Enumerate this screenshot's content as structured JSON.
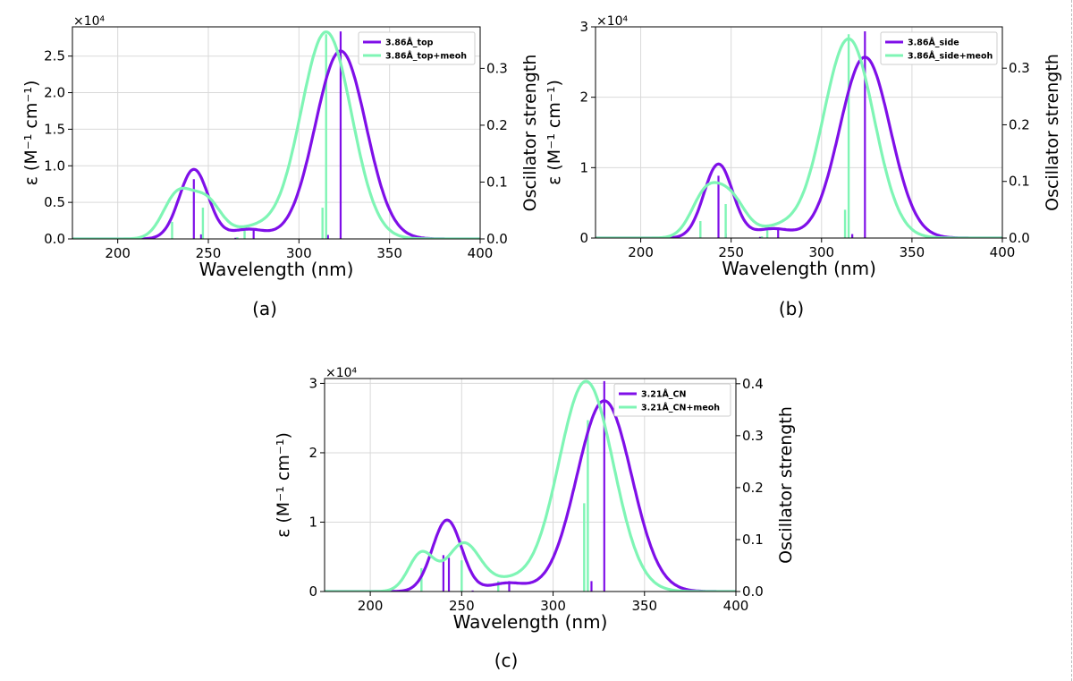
{
  "chart_data": [
    {
      "type": "line",
      "panel_label": "(a)",
      "xlabel": "Wavelength (nm)",
      "ylabel": "ε (M⁻¹ cm⁻¹)",
      "y2label": "Oscillator strength",
      "exponent_label": "×10⁴",
      "xlim": [
        175,
        400
      ],
      "ylim": [
        0,
        2.9
      ],
      "y2lim": [
        0,
        0.373
      ],
      "xticks": [
        200,
        250,
        300,
        350,
        400
      ],
      "yticks": [
        0.0,
        0.5,
        1.0,
        1.5,
        2.0,
        2.5
      ],
      "ytick_labels": [
        "0.0",
        "0.5",
        "1.0",
        "1.5",
        "2.0",
        "2.5"
      ],
      "y2ticks": [
        0.0,
        0.1,
        0.2,
        0.3
      ],
      "y2tick_labels": [
        "0.0",
        "0.1",
        "0.2",
        "0.3"
      ],
      "grid": true,
      "legend_position": "top-right",
      "series": [
        {
          "name": "3.86Å_top",
          "color": "#7f0fe8",
          "bands": [
            {
              "center": 242,
              "amp": 0.95,
              "sigma": 8
            },
            {
              "center": 272,
              "amp": 0.13,
              "sigma": 10
            },
            {
              "center": 323,
              "amp": 2.57,
              "sigma": 14
            }
          ],
          "sticks": [
            [
              242,
              0.105
            ],
            [
              246,
              0.008
            ],
            [
              265,
              0.002
            ],
            [
              275,
              0.016
            ],
            [
              316,
              0.007
            ],
            [
              323,
              0.365
            ]
          ]
        },
        {
          "name": "3.86Å_top+meoh",
          "color": "#7ff5b5",
          "bands": [
            {
              "center": 233,
              "amp": 0.6,
              "sigma": 8
            },
            {
              "center": 249,
              "amp": 0.5,
              "sigma": 8
            },
            {
              "center": 275,
              "amp": 0.15,
              "sigma": 12
            },
            {
              "center": 315,
              "amp": 2.83,
              "sigma": 14
            }
          ],
          "sticks": [
            [
              230,
              0.03
            ],
            [
              247,
              0.055
            ],
            [
              266,
              0.003
            ],
            [
              270,
              0.02
            ],
            [
              313,
              0.055
            ],
            [
              315,
              0.36
            ]
          ]
        }
      ]
    },
    {
      "type": "line",
      "panel_label": "(b)",
      "xlabel": "Wavelength (nm)",
      "ylabel": "ε (M⁻¹ cm⁻¹)",
      "y2label": "Oscillator strength",
      "exponent_label": "×10⁴",
      "xlim": [
        175,
        400
      ],
      "ylim": [
        0,
        3.0
      ],
      "y2lim": [
        0,
        0.373
      ],
      "xticks": [
        200,
        250,
        300,
        350,
        400
      ],
      "yticks": [
        0,
        1,
        2,
        3
      ],
      "ytick_labels": [
        "0",
        "1",
        "2",
        "3"
      ],
      "y2ticks": [
        0.0,
        0.1,
        0.2,
        0.3
      ],
      "y2tick_labels": [
        "0.0",
        "0.1",
        "0.2",
        "0.3"
      ],
      "grid": true,
      "legend_position": "top-right",
      "series": [
        {
          "name": "3.86Å_side",
          "color": "#7f0fe8",
          "bands": [
            {
              "center": 243,
              "amp": 1.05,
              "sigma": 8
            },
            {
              "center": 273,
              "amp": 0.13,
              "sigma": 10
            },
            {
              "center": 324,
              "amp": 2.57,
              "sigma": 14
            }
          ],
          "sticks": [
            [
              243,
              0.11
            ],
            [
              247,
              0.008
            ],
            [
              266,
              0.002
            ],
            [
              276,
              0.015
            ],
            [
              317,
              0.007
            ],
            [
              324,
              0.365
            ]
          ]
        },
        {
          "name": "3.86Å_side+meoh",
          "color": "#7ff5b5",
          "bands": [
            {
              "center": 236,
              "amp": 0.62,
              "sigma": 8
            },
            {
              "center": 250,
              "amp": 0.52,
              "sigma": 8
            },
            {
              "center": 276,
              "amp": 0.15,
              "sigma": 12
            },
            {
              "center": 315,
              "amp": 2.83,
              "sigma": 14
            }
          ],
          "sticks": [
            [
              233,
              0.03
            ],
            [
              247,
              0.06
            ],
            [
              267,
              0.003
            ],
            [
              270,
              0.02
            ],
            [
              313,
              0.05
            ],
            [
              315,
              0.36
            ]
          ]
        }
      ]
    },
    {
      "type": "line",
      "panel_label": "(c)",
      "xlabel": "Wavelength (nm)",
      "ylabel": "ε (M⁻¹ cm⁻¹)",
      "y2label": "Oscillator strength",
      "exponent_label": "×10⁴",
      "xlim": [
        175,
        400
      ],
      "ylim": [
        0,
        3.07
      ],
      "y2lim": [
        0,
        0.41
      ],
      "xticks": [
        200,
        250,
        300,
        350,
        400
      ],
      "yticks": [
        0,
        1,
        2,
        3
      ],
      "ytick_labels": [
        "0",
        "1",
        "2",
        "3"
      ],
      "y2ticks": [
        0.0,
        0.1,
        0.2,
        0.3,
        0.4
      ],
      "y2tick_labels": [
        "0.0",
        "0.1",
        "0.2",
        "0.3",
        "0.4"
      ],
      "grid": true,
      "legend_position": "top-right",
      "series": [
        {
          "name": "3.21Å_CN",
          "color": "#7f0fe8",
          "bands": [
            {
              "center": 242,
              "amp": 1.03,
              "sigma": 8
            },
            {
              "center": 275,
              "amp": 0.12,
              "sigma": 10
            },
            {
              "center": 328,
              "amp": 2.75,
              "sigma": 15
            }
          ],
          "sticks": [
            [
              240,
              0.07
            ],
            [
              243,
              0.065
            ],
            [
              256,
              0.002
            ],
            [
              276,
              0.02
            ],
            [
              321,
              0.02
            ],
            [
              328,
              0.405
            ]
          ]
        },
        {
          "name": "3.21Å_CN+meoh",
          "color": "#7ff5b5",
          "bands": [
            {
              "center": 228,
              "amp": 0.55,
              "sigma": 7
            },
            {
              "center": 251,
              "amp": 0.68,
              "sigma": 9
            },
            {
              "center": 275,
              "amp": 0.15,
              "sigma": 12
            },
            {
              "center": 318,
              "amp": 3.03,
              "sigma": 15
            }
          ],
          "sticks": [
            [
              228,
              0.045
            ],
            [
              250,
              0.06
            ],
            [
              270,
              0.02
            ],
            [
              317,
              0.17
            ],
            [
              319,
              0.33
            ]
          ]
        }
      ]
    }
  ]
}
